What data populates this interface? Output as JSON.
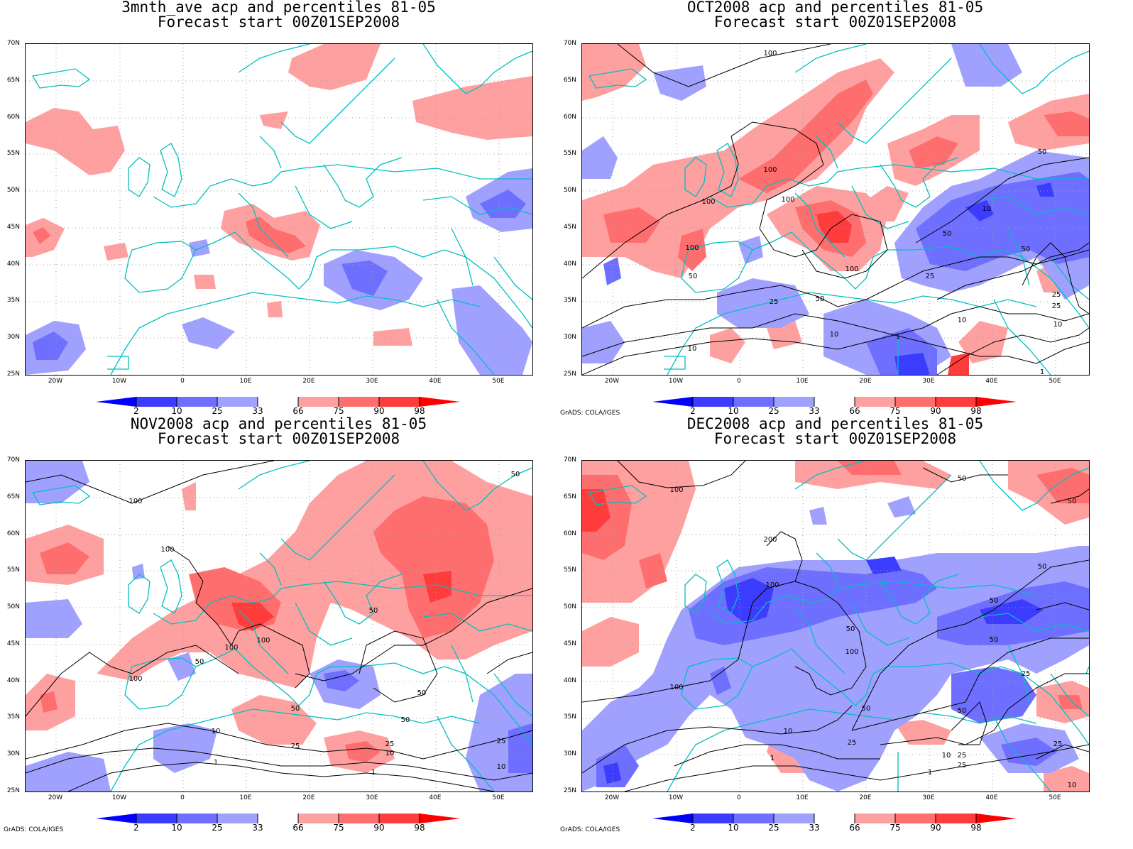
{
  "panels": [
    {
      "title1": "3mnth_ave acp and percentiles 81-05",
      "title2": "Forecast start 00Z01SEP2008",
      "credit": ""
    },
    {
      "title1": "OCT2008 acp and percentiles 81-05",
      "title2": "Forecast start 00Z01SEP2008",
      "credit": "GrADS: COLA/IGES"
    },
    {
      "title1": "NOV2008 acp and percentiles 81-05",
      "title2": "Forecast start 00Z01SEP2008",
      "credit": "GrADS: COLA/IGES"
    },
    {
      "title1": "DEC2008 acp and percentiles 81-05",
      "title2": "Forecast start 00Z01SEP2008",
      "credit": "GrADS: COLA/IGES"
    }
  ],
  "axes": {
    "lat_labels": [
      "70N",
      "65N",
      "60N",
      "55N",
      "50N",
      "45N",
      "40N",
      "35N",
      "30N",
      "25N"
    ],
    "lon_labels": [
      "20W",
      "10W",
      "0",
      "10E",
      "20E",
      "30E",
      "40E",
      "50E"
    ]
  },
  "colorbar": {
    "labels": [
      "2",
      "10",
      "25",
      "33",
      "66",
      "75",
      "90",
      "98"
    ],
    "colors": [
      "#0000ff",
      "#3c3cff",
      "#6e6eff",
      "#a0a0ff",
      "#ffffff",
      "#ffa0a0",
      "#ff6e6e",
      "#ff3c3c",
      "#ff0000"
    ]
  },
  "contour_labels": {
    "oct": [
      "100",
      "100",
      "100",
      "100",
      "100",
      "100",
      "50",
      "50",
      "25",
      "10",
      "1",
      "50",
      "25",
      "10",
      "10",
      "1",
      "10",
      "50",
      "25",
      "50",
      "25",
      "10"
    ],
    "nov": [
      "100",
      "100",
      "100",
      "100",
      "100",
      "50",
      "50",
      "50",
      "50",
      "10",
      "25",
      "1",
      "25",
      "10",
      "1",
      "50",
      "25",
      "10",
      "50"
    ],
    "dec": [
      "100",
      "200",
      "100",
      "100",
      "100",
      "50",
      "50",
      "50",
      "10",
      "25",
      "1",
      "50",
      "25",
      "10",
      "25",
      "1",
      "25",
      "50",
      "25",
      "50",
      "50",
      "50",
      "10"
    ]
  },
  "colors": {
    "coast": "#00c0c0",
    "grid": "#a0a0a0"
  }
}
